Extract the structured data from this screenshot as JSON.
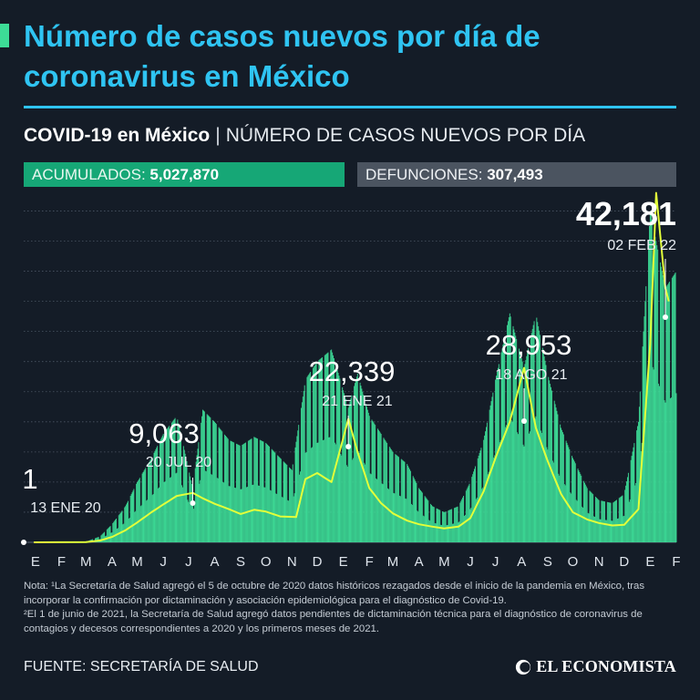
{
  "title": "Número de casos nuevos por día de coronavirus en México",
  "subtitle": {
    "strong": "COVID-19 en México",
    "separator": "|",
    "rest": "NÚMERO DE CASOS NUEVOS POR DÍA"
  },
  "stats": {
    "acumulados_label": "ACUMULADOS:",
    "acumulados_value": "5,027,870",
    "defunciones_label": "DEFUNCIONES:",
    "defunciones_value": "307,493"
  },
  "colors": {
    "background": "#141c27",
    "title": "#2fc4f2",
    "bars": "#3ddc97",
    "line": "#e3ff3a",
    "acumulados": "#16a776",
    "defunciones": "#4b5460"
  },
  "chart_data": {
    "type": "bar",
    "xlabel": "",
    "ylabel": "",
    "ylim": [
      0,
      60000
    ],
    "grid": true,
    "x_ticks": [
      "E",
      "F",
      "M",
      "A",
      "M",
      "J",
      "J",
      "A",
      "S",
      "O",
      "N",
      "D",
      "E",
      "F",
      "M",
      "A",
      "M",
      "J",
      "J",
      "A",
      "S",
      "O",
      "N",
      "D",
      "E",
      "F"
    ],
    "series": [
      {
        "type": "bar",
        "description": "daily new cases (approximate, estimated by reading the plot)",
        "points": [
          [
            "2020-01-13",
            1
          ],
          [
            "2020-03-15",
            100
          ],
          [
            "2020-04-01",
            1000
          ],
          [
            "2020-04-15",
            3000
          ],
          [
            "2020-05-01",
            6000
          ],
          [
            "2020-05-15",
            10000
          ],
          [
            "2020-06-01",
            14000
          ],
          [
            "2020-06-15",
            18000
          ],
          [
            "2020-07-01",
            21000
          ],
          [
            "2020-07-20",
            9063
          ],
          [
            "2020-08-01",
            22000
          ],
          [
            "2020-08-15",
            20000
          ],
          [
            "2020-09-01",
            17000
          ],
          [
            "2020-09-15",
            16000
          ],
          [
            "2020-10-01",
            17500
          ],
          [
            "2020-10-15",
            16500
          ],
          [
            "2020-11-01",
            14000
          ],
          [
            "2020-11-15",
            12000
          ],
          [
            "2020-12-01",
            27000
          ],
          [
            "2020-12-15",
            30000
          ],
          [
            "2021-01-01",
            32000
          ],
          [
            "2021-01-21",
            22339
          ],
          [
            "2021-02-01",
            28000
          ],
          [
            "2021-02-15",
            21000
          ],
          [
            "2021-03-01",
            18000
          ],
          [
            "2021-03-15",
            15000
          ],
          [
            "2021-04-01",
            13000
          ],
          [
            "2021-04-15",
            9000
          ],
          [
            "2021-05-01",
            6000
          ],
          [
            "2021-05-15",
            5000
          ],
          [
            "2021-06-01",
            6000
          ],
          [
            "2021-06-15",
            10000
          ],
          [
            "2021-07-01",
            17000
          ],
          [
            "2021-07-15",
            27000
          ],
          [
            "2021-08-01",
            38000
          ],
          [
            "2021-08-18",
            28953
          ],
          [
            "2021-09-01",
            38000
          ],
          [
            "2021-09-15",
            28000
          ],
          [
            "2021-10-01",
            19000
          ],
          [
            "2021-10-15",
            14000
          ],
          [
            "2021-11-01",
            9000
          ],
          [
            "2021-11-15",
            7000
          ],
          [
            "2021-12-01",
            6500
          ],
          [
            "2021-12-15",
            8000
          ],
          [
            "2022-01-01",
            20000
          ],
          [
            "2022-01-15",
            55000
          ],
          [
            "2022-02-02",
            42181
          ],
          [
            "2022-02-15",
            45000
          ]
        ]
      },
      {
        "type": "line",
        "description": "7-day average (approximate)",
        "points": [
          [
            "2020-01-13",
            0
          ],
          [
            "2020-03-15",
            50
          ],
          [
            "2020-04-01",
            300
          ],
          [
            "2020-04-15",
            900
          ],
          [
            "2020-05-01",
            2000
          ],
          [
            "2020-05-15",
            3300
          ],
          [
            "2020-06-01",
            5000
          ],
          [
            "2020-06-15",
            6300
          ],
          [
            "2020-07-01",
            7700
          ],
          [
            "2020-07-20",
            8200
          ],
          [
            "2020-08-01",
            7300
          ],
          [
            "2020-08-15",
            6400
          ],
          [
            "2020-09-01",
            5500
          ],
          [
            "2020-09-15",
            4700
          ],
          [
            "2020-10-01",
            5400
          ],
          [
            "2020-10-15",
            5100
          ],
          [
            "2020-11-01",
            4300
          ],
          [
            "2020-11-20",
            4200
          ],
          [
            "2020-12-01",
            10500
          ],
          [
            "2020-12-15",
            11500
          ],
          [
            "2021-01-01",
            10000
          ],
          [
            "2021-01-21",
            20500
          ],
          [
            "2021-02-01",
            15000
          ],
          [
            "2021-02-15",
            9000
          ],
          [
            "2021-03-01",
            6500
          ],
          [
            "2021-03-15",
            4800
          ],
          [
            "2021-04-01",
            3600
          ],
          [
            "2021-04-15",
            3000
          ],
          [
            "2021-05-01",
            2600
          ],
          [
            "2021-05-15",
            2300
          ],
          [
            "2021-06-01",
            2600
          ],
          [
            "2021-06-15",
            4000
          ],
          [
            "2021-07-01",
            8500
          ],
          [
            "2021-07-15",
            14000
          ],
          [
            "2021-08-01",
            20000
          ],
          [
            "2021-08-18",
            28953
          ],
          [
            "2021-09-01",
            19000
          ],
          [
            "2021-09-15",
            13500
          ],
          [
            "2021-10-01",
            8000
          ],
          [
            "2021-10-15",
            5000
          ],
          [
            "2021-11-01",
            3800
          ],
          [
            "2021-11-15",
            3200
          ],
          [
            "2021-12-01",
            2800
          ],
          [
            "2021-12-15",
            2900
          ],
          [
            "2022-01-01",
            5500
          ],
          [
            "2022-01-15",
            33000
          ],
          [
            "2022-01-22",
            58000
          ],
          [
            "2022-02-02",
            42181
          ],
          [
            "2022-02-06",
            40000
          ]
        ]
      }
    ],
    "annotations": [
      {
        "value": "1",
        "date": "13 ENE 20"
      },
      {
        "value": "9,063",
        "date": "20 JUL 20"
      },
      {
        "value": "22,339",
        "date": "21 ENE 21"
      },
      {
        "value": "28,953",
        "date": "18 AGO 21"
      },
      {
        "value": "42,181",
        "date": "02 FEB 22"
      }
    ]
  },
  "notes": [
    "Nota: ¹La Secretaría de Salud agregó el 5 de octubre de 2020 datos históricos rezagados desde el inicio de la pandemia en México, tras incorporar la confirmación por dictaminación y asociación epidemiológica para el diagnóstico de Covid-19.",
    "²El 1 de junio de 2021, la Secretaría de Salud agregó datos pendientes de dictaminación técnica para el diagnóstico de coronavirus de contagios y decesos correspondientes a 2020 y los primeros meses de 2021."
  ],
  "source": "FUENTE: SECRETARÍA DE SALUD",
  "brand": "EL ECONOMISTA"
}
